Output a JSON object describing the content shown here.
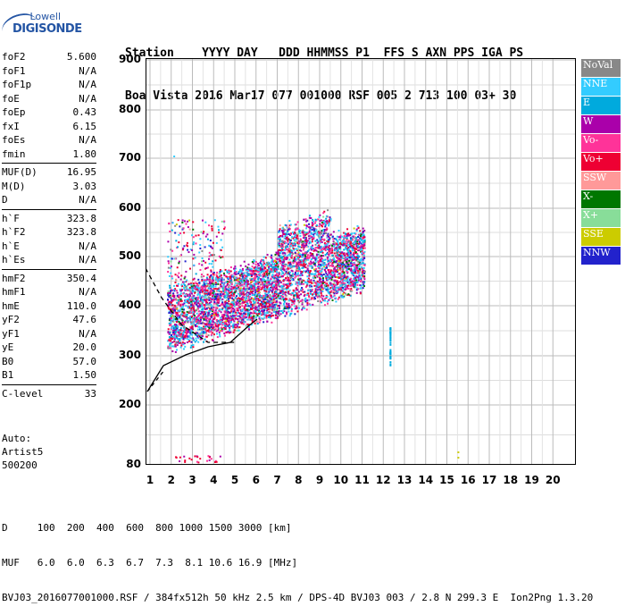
{
  "logo": {
    "line1": "Lowell",
    "line2": "DIGISONDE"
  },
  "header": {
    "row1": "Station    YYYY DAY   DDD HHMMSS P1  FFS S AXN PPS IGA PS",
    "row2": "Boa Vista 2016 Mar17 077 001000 RSF 005 2 713 100 03+ 30"
  },
  "params": [
    {
      "n": "foF2",
      "v": "5.600"
    },
    {
      "n": "foF1",
      "v": "N/A"
    },
    {
      "n": "foF1p",
      "v": "N/A"
    },
    {
      "n": "foE",
      "v": "N/A"
    },
    {
      "n": "foEp",
      "v": "0.43"
    },
    {
      "n": "fxI",
      "v": "6.15"
    },
    {
      "n": "foEs",
      "v": "N/A"
    },
    {
      "n": "fmin",
      "v": "1.80"
    },
    {
      "sep": true
    },
    {
      "n": "MUF(D)",
      "v": "16.95"
    },
    {
      "n": "M(D)",
      "v": "3.03"
    },
    {
      "n": "D",
      "v": "N/A"
    },
    {
      "sep": true
    },
    {
      "n": "h`F",
      "v": "323.8"
    },
    {
      "n": "h`F2",
      "v": "323.8"
    },
    {
      "n": "h`E",
      "v": "N/A"
    },
    {
      "n": "h`Es",
      "v": "N/A"
    },
    {
      "sep": true
    },
    {
      "n": "hmF2",
      "v": "350.4"
    },
    {
      "n": "hmF1",
      "v": "N/A"
    },
    {
      "n": "hmE",
      "v": "110.0"
    },
    {
      "n": "yF2",
      "v": "47.6"
    },
    {
      "n": "yF1",
      "v": "N/A"
    },
    {
      "n": "yE",
      "v": "20.0"
    },
    {
      "n": "B0",
      "v": "57.0"
    },
    {
      "n": "B1",
      "v": "1.50"
    },
    {
      "sep": true
    },
    {
      "n": "C-level",
      "v": "33"
    }
  ],
  "auto": {
    "l1": "Auto:",
    "l2": "Artist5",
    "l3": "500200"
  },
  "y_ticks": [
    "900",
    "800",
    "700",
    "600",
    "500",
    "400",
    "300",
    "200",
    "80"
  ],
  "x_ticks": [
    "1",
    "2",
    "3",
    "4",
    "5",
    "6",
    "7",
    "8",
    "9",
    "10",
    "11",
    "12",
    "13",
    "14",
    "15",
    "16",
    "17",
    "18",
    "19",
    "20"
  ],
  "legend": [
    {
      "label": "NoVal",
      "color": "#888888"
    },
    {
      "label": "NNE",
      "color": "#33ccff"
    },
    {
      "label": "E",
      "color": "#00aadd"
    },
    {
      "label": "W",
      "color": "#aa00aa"
    },
    {
      "label": "Vo-",
      "color": "#ff3399"
    },
    {
      "label": "Vo+",
      "color": "#ee0033"
    },
    {
      "label": "SSW",
      "color": "#ff9999"
    },
    {
      "label": "X-",
      "color": "#007700"
    },
    {
      "label": "X+",
      "color": "#88dd99"
    },
    {
      "label": "SSE",
      "color": "#cccc00"
    },
    {
      "label": "NNW",
      "color": "#2222cc"
    }
  ],
  "footer": {
    "row1": "D     100  200  400  600  800 1000 1500 3000 [km]",
    "row2": "MUF   6.0  6.0  6.3  6.7  7.3  8.1 10.6 16.9 [MHz]",
    "row3": "BVJ03_2016077001000.RSF / 384fx512h 50 kHz 2.5 km / DPS-4D BVJ03 003 / 2.8 N 299.3 E  Ion2Png 1.3.20"
  }
}
